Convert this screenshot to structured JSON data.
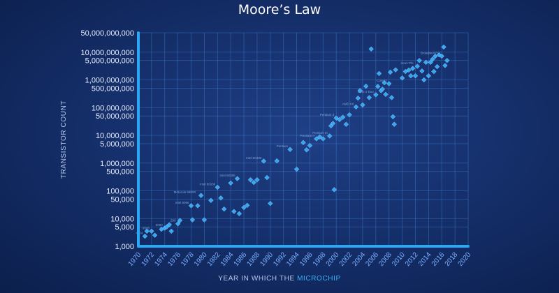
{
  "chart_data": {
    "type": "scatter",
    "title": "Moore’s Law",
    "xlabel_parts": [
      "YEAR IN WHICH THE ",
      "MICROCHIP"
    ],
    "ylabel": "TRANSISTOR COUNT",
    "yscale": "log",
    "ylim": [
      1000,
      50000000000
    ],
    "xlim": [
      1970,
      2020
    ],
    "grid": true,
    "y_ticks": [
      {
        "value": 50000000000,
        "label": "50,000,000,000"
      },
      {
        "value": 10000000000,
        "label": "10,000,000,000"
      },
      {
        "value": 5000000000,
        "label": "5,000,000,000"
      },
      {
        "value": 1000000000,
        "label": "1,000,000,000"
      },
      {
        "value": 500000000,
        "label": "500,000,000"
      },
      {
        "value": 100000000,
        "label": "100,000,000"
      },
      {
        "value": 50000000,
        "label": "50,000,000"
      },
      {
        "value": 10000000,
        "label": "10,000,000"
      },
      {
        "value": 5000000,
        "label": "5,000,000"
      },
      {
        "value": 1000000,
        "label": "1,000,000"
      },
      {
        "value": 500000,
        "label": "500,000"
      },
      {
        "value": 100000,
        "label": "100,000"
      },
      {
        "value": 50000,
        "label": "50,000"
      },
      {
        "value": 10000,
        "label": "10,000"
      },
      {
        "value": 5000,
        "label": "5,000"
      },
      {
        "value": 1000,
        "label": "1,000"
      }
    ],
    "x_ticks": [
      {
        "value": 1970,
        "label": "1970"
      },
      {
        "value": 1972,
        "label": "1972"
      },
      {
        "value": 1974,
        "label": "1974"
      },
      {
        "value": 1976,
        "label": "1976"
      },
      {
        "value": 1978,
        "label": "1978"
      },
      {
        "value": 1980,
        "label": "1980"
      },
      {
        "value": 1982,
        "label": "1982"
      },
      {
        "value": 1984,
        "label": "1984"
      },
      {
        "value": 1986,
        "label": "1986"
      },
      {
        "value": 1988,
        "label": "1988"
      },
      {
        "value": 1990,
        "label": "1990"
      },
      {
        "value": 1992,
        "label": "1992"
      },
      {
        "value": 1994,
        "label": "1994"
      },
      {
        "value": 1996,
        "label": "1996"
      },
      {
        "value": 1998,
        "label": "1998"
      },
      {
        "value": 2000,
        "label": "2000"
      },
      {
        "value": 2002,
        "label": "2002"
      },
      {
        "value": 2004,
        "label": "2004"
      },
      {
        "value": 2006,
        "label": "2006"
      },
      {
        "value": 2008,
        "label": "2008"
      },
      {
        "value": 2010,
        "label": "2010"
      },
      {
        "value": 2012,
        "label": "2012"
      },
      {
        "value": 2014,
        "label": "2014"
      },
      {
        "value": 2016,
        "label": "2016"
      },
      {
        "value": 2018,
        "label": "2018"
      },
      {
        "value": 2020,
        "label": "2020"
      }
    ],
    "points": [
      {
        "x": 1971,
        "y": 2300
      },
      {
        "x": 1971.3,
        "y": 3500
      },
      {
        "x": 1972,
        "y": 3500
      },
      {
        "x": 1972.5,
        "y": 2500
      },
      {
        "x": 1973.5,
        "y": 4100
      },
      {
        "x": 1974,
        "y": 4500
      },
      {
        "x": 1974.3,
        "y": 5000
      },
      {
        "x": 1974.7,
        "y": 6000
      },
      {
        "x": 1975,
        "y": 3500
      },
      {
        "x": 1976,
        "y": 6500
      },
      {
        "x": 1976.3,
        "y": 8500
      },
      {
        "x": 1978,
        "y": 29000
      },
      {
        "x": 1978.2,
        "y": 9000
      },
      {
        "x": 1979,
        "y": 29000
      },
      {
        "x": 1979.5,
        "y": 68000
      },
      {
        "x": 1980,
        "y": 9000
      },
      {
        "x": 1981,
        "y": 45000
      },
      {
        "x": 1982,
        "y": 134000
      },
      {
        "x": 1982.5,
        "y": 55000
      },
      {
        "x": 1983,
        "y": 22000
      },
      {
        "x": 1984,
        "y": 190000
      },
      {
        "x": 1984.5,
        "y": 18000
      },
      {
        "x": 1985,
        "y": 275000
      },
      {
        "x": 1985.3,
        "y": 15000
      },
      {
        "x": 1986,
        "y": 25000
      },
      {
        "x": 1986.5,
        "y": 30000
      },
      {
        "x": 1987,
        "y": 250000
      },
      {
        "x": 1987.5,
        "y": 200000
      },
      {
        "x": 1988,
        "y": 250000
      },
      {
        "x": 1989,
        "y": 1180000
      },
      {
        "x": 1989.5,
        "y": 300000
      },
      {
        "x": 1990,
        "y": 35000
      },
      {
        "x": 1991,
        "y": 1200000
      },
      {
        "x": 1993,
        "y": 3100000
      },
      {
        "x": 1994,
        "y": 600000
      },
      {
        "x": 1995,
        "y": 5500000
      },
      {
        "x": 1995.5,
        "y": 3000000
      },
      {
        "x": 1996,
        "y": 4300000
      },
      {
        "x": 1997,
        "y": 7500000
      },
      {
        "x": 1997.5,
        "y": 8800000
      },
      {
        "x": 1998,
        "y": 7500000
      },
      {
        "x": 1999,
        "y": 9500000
      },
      {
        "x": 1999.2,
        "y": 22000000
      },
      {
        "x": 1999.5,
        "y": 27000000
      },
      {
        "x": 1999.7,
        "y": 110000
      },
      {
        "x": 2000,
        "y": 42000000
      },
      {
        "x": 2000.5,
        "y": 37000000
      },
      {
        "x": 2001,
        "y": 45000000
      },
      {
        "x": 2001.5,
        "y": 25000000
      },
      {
        "x": 2002,
        "y": 55000000
      },
      {
        "x": 2003,
        "y": 105900000
      },
      {
        "x": 2003.3,
        "y": 220000000
      },
      {
        "x": 2003.6,
        "y": 410000000
      },
      {
        "x": 2004,
        "y": 125000000
      },
      {
        "x": 2004.5,
        "y": 592000000
      },
      {
        "x": 2005,
        "y": 230000000
      },
      {
        "x": 2005.3,
        "y": 13000000000
      },
      {
        "x": 2006,
        "y": 291000000
      },
      {
        "x": 2006.3,
        "y": 582000000
      },
      {
        "x": 2006.5,
        "y": 1700000000
      },
      {
        "x": 2006.8,
        "y": 410000000
      },
      {
        "x": 2007,
        "y": 463000000
      },
      {
        "x": 2007.3,
        "y": 789000000
      },
      {
        "x": 2007.5,
        "y": 300000000
      },
      {
        "x": 2008,
        "y": 731000000
      },
      {
        "x": 2008.2,
        "y": 1900000000
      },
      {
        "x": 2008.4,
        "y": 230000000
      },
      {
        "x": 2008.6,
        "y": 47000000
      },
      {
        "x": 2008.8,
        "y": 25000000
      },
      {
        "x": 2009,
        "y": 2300000000
      },
      {
        "x": 2010,
        "y": 1170000000
      },
      {
        "x": 2010.5,
        "y": 2000000000
      },
      {
        "x": 2011,
        "y": 2270000000
      },
      {
        "x": 2011.3,
        "y": 1400000000
      },
      {
        "x": 2011.6,
        "y": 2600000000
      },
      {
        "x": 2012,
        "y": 1400000000
      },
      {
        "x": 2012.3,
        "y": 3100000000
      },
      {
        "x": 2012.6,
        "y": 5000000000
      },
      {
        "x": 2013,
        "y": 2100000000
      },
      {
        "x": 2013.3,
        "y": 1000000000
      },
      {
        "x": 2013.6,
        "y": 4300000000
      },
      {
        "x": 2014,
        "y": 1400000000
      },
      {
        "x": 2014.3,
        "y": 4310000000
      },
      {
        "x": 2014.6,
        "y": 5560000000
      },
      {
        "x": 2014.8,
        "y": 2000000000
      },
      {
        "x": 2015,
        "y": 7100000000
      },
      {
        "x": 2015.3,
        "y": 3000000000
      },
      {
        "x": 2015.6,
        "y": 8000000000
      },
      {
        "x": 2016,
        "y": 7200000000
      },
      {
        "x": 2016.3,
        "y": 15300000000
      },
      {
        "x": 2016.5,
        "y": 3300000000
      },
      {
        "x": 2016.8,
        "y": 5000000000
      }
    ],
    "point_labels": [
      {
        "x": 1971,
        "y": 2300,
        "text": "4004"
      },
      {
        "x": 1972,
        "y": 3500,
        "text": "8008"
      },
      {
        "x": 1974,
        "y": 4500,
        "text": "8080"
      },
      {
        "x": 1976,
        "y": 6500,
        "text": "Z80"
      },
      {
        "x": 1978,
        "y": 29000,
        "text": "Intel 8086"
      },
      {
        "x": 1979,
        "y": 68000,
        "text": "Motorola 68000"
      },
      {
        "x": 1982,
        "y": 134000,
        "text": "Intel 80286"
      },
      {
        "x": 1985,
        "y": 275000,
        "text": "Intel 80386"
      },
      {
        "x": 1989,
        "y": 1180000,
        "text": "Intel 80486"
      },
      {
        "x": 1993,
        "y": 3100000,
        "text": "Pentium"
      },
      {
        "x": 1997,
        "y": 7500000,
        "text": "Pentium II"
      },
      {
        "x": 1999,
        "y": 9500000,
        "text": "Pentium III"
      },
      {
        "x": 2000,
        "y": 42000000,
        "text": "Pentium 4"
      },
      {
        "x": 2003,
        "y": 105900000,
        "text": "AMD K8"
      },
      {
        "x": 2006,
        "y": 291000000,
        "text": "Core 2 Duo"
      },
      {
        "x": 2008,
        "y": 731000000,
        "text": "Core i7"
      },
      {
        "x": 2012,
        "y": 3100000000,
        "text": "Xeon Phi"
      },
      {
        "x": 2016,
        "y": 7200000000,
        "text": "Broadwell-EP"
      }
    ]
  }
}
